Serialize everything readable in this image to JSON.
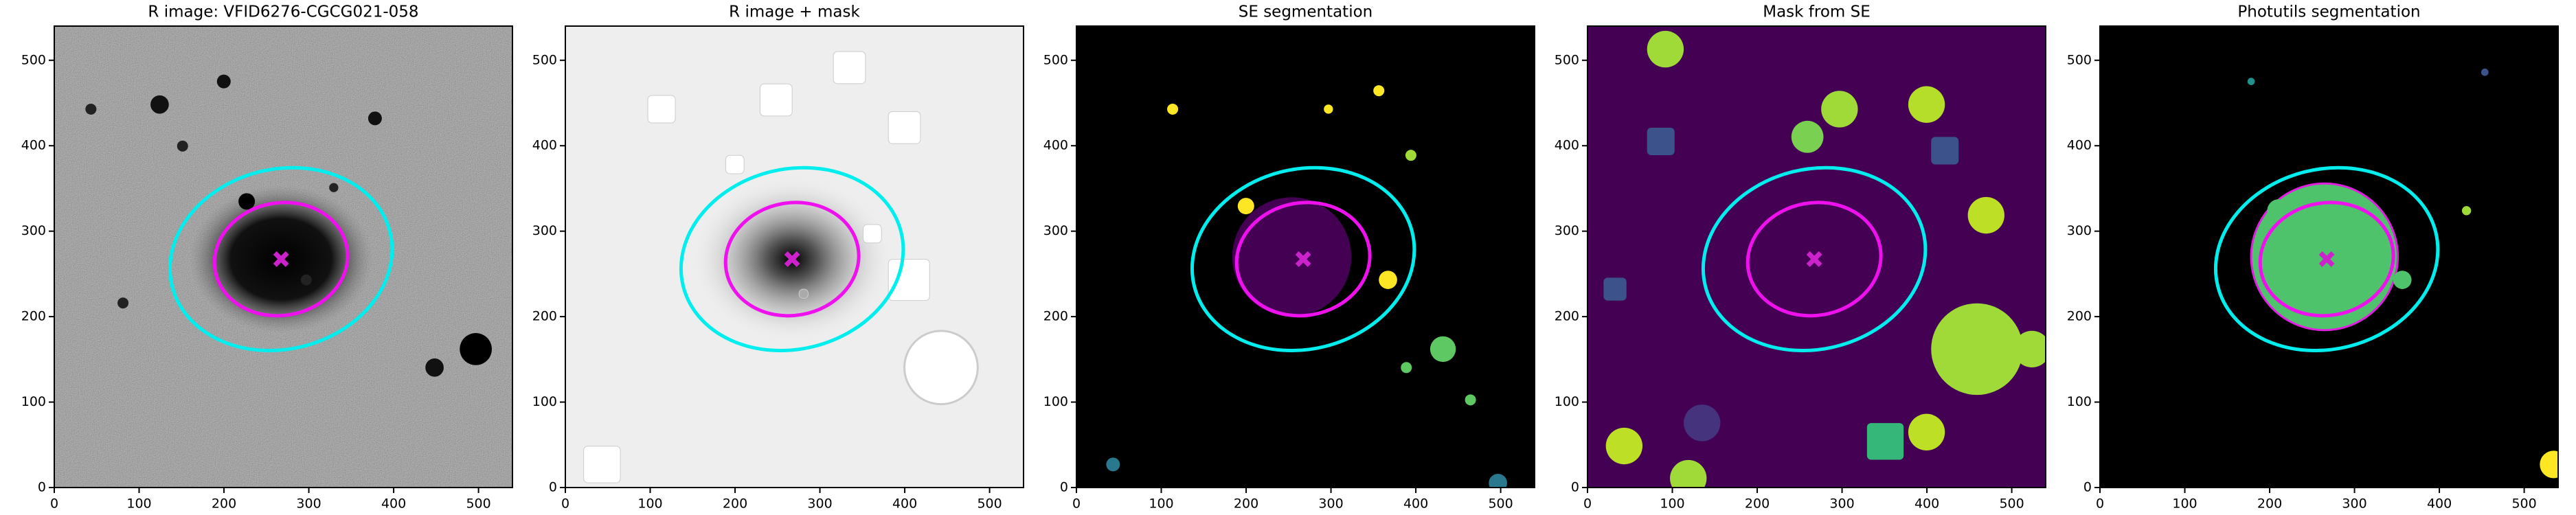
{
  "chart_data": [
    {
      "type": "image",
      "title": "R image: VFID6276-CGCG021-058",
      "xlim": [
        0,
        540
      ],
      "ylim": [
        0,
        540
      ],
      "xticks": [
        0,
        100,
        200,
        300,
        400,
        500
      ],
      "yticks": [
        0,
        100,
        200,
        300,
        400,
        500
      ]
    },
    {
      "type": "image",
      "title": "R image + mask",
      "xlim": [
        0,
        540
      ],
      "ylim": [
        0,
        540
      ],
      "xticks": [
        0,
        100,
        200,
        300,
        400,
        500
      ],
      "yticks": [
        0,
        100,
        200,
        300,
        400,
        500
      ]
    },
    {
      "type": "image",
      "title": "SE segmentation",
      "xlim": [
        0,
        540
      ],
      "ylim": [
        0,
        540
      ],
      "xticks": [
        0,
        100,
        200,
        300,
        400,
        500
      ],
      "yticks": [
        0,
        100,
        200,
        300,
        400,
        500
      ]
    },
    {
      "type": "image",
      "title": "Mask from SE",
      "xlim": [
        0,
        540
      ],
      "ylim": [
        0,
        540
      ],
      "xticks": [
        0,
        100,
        200,
        300,
        400,
        500
      ],
      "yticks": [
        0,
        100,
        200,
        300,
        400,
        500
      ]
    },
    {
      "type": "image",
      "title": "Photutils segmentation",
      "xlim": [
        0,
        540
      ],
      "ylim": [
        0,
        540
      ],
      "xticks": [
        0,
        100,
        200,
        300,
        400,
        500
      ],
      "yticks": [
        0,
        100,
        200,
        300,
        400,
        500
      ]
    }
  ]
}
